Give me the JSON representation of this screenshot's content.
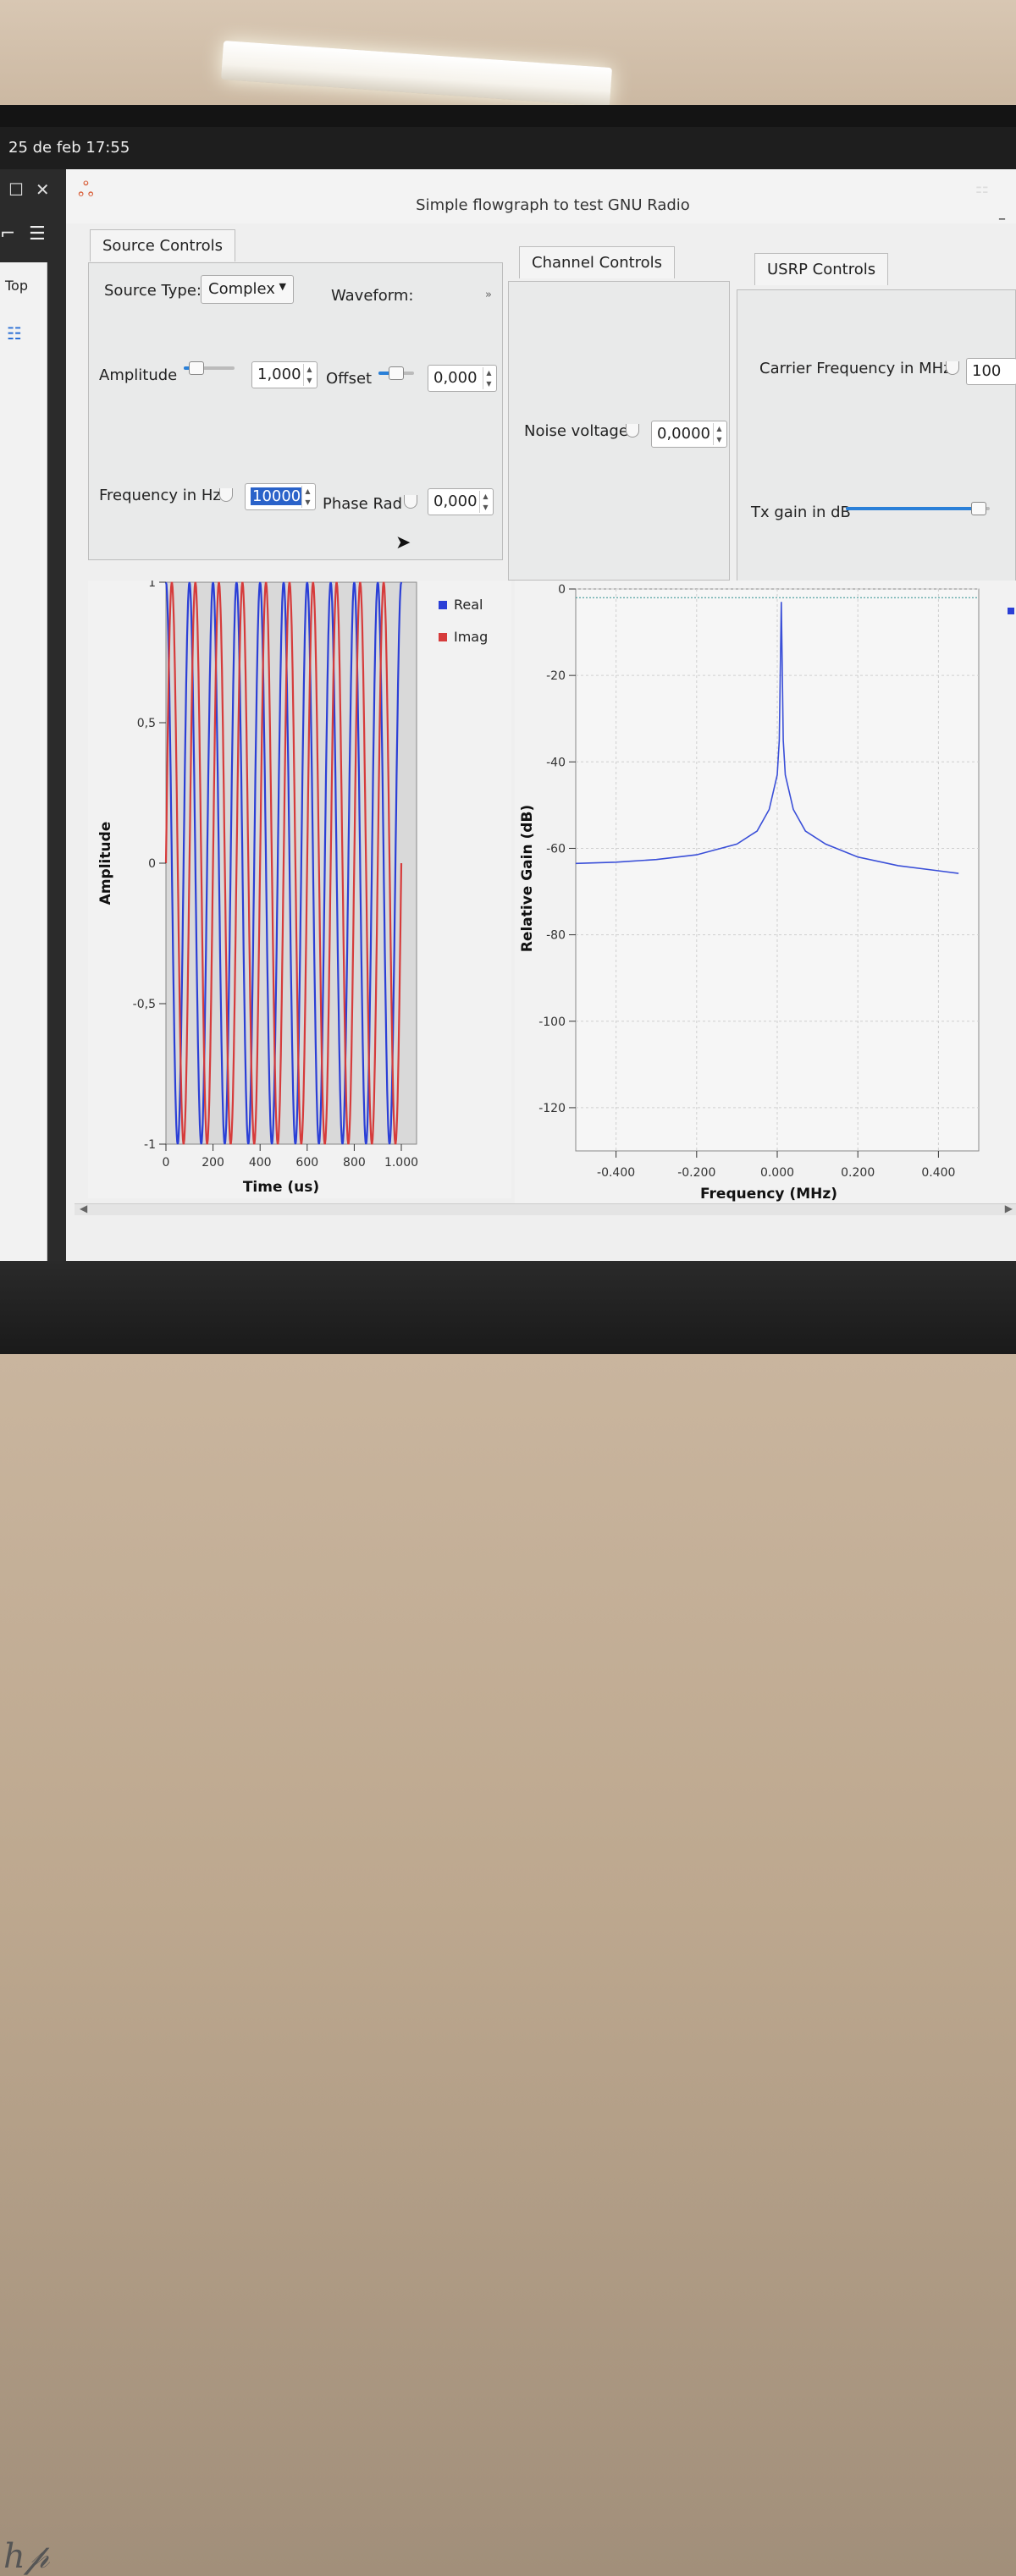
{
  "system": {
    "clock": "25 de feb  17:55"
  },
  "window": {
    "title": "Simple flowgraph to test GNU Radio"
  },
  "sidebar": {
    "top_label": "Top"
  },
  "source_controls": {
    "tab": "Source Controls",
    "source_type_label": "Source Type:",
    "source_type_value": "Complex",
    "waveform_label": "Waveform:",
    "amplitude_label": "Amplitude",
    "amplitude_value": "1,000",
    "offset_label": "Offset",
    "offset_value": "0,000",
    "frequency_label": "Frequency in Hz",
    "frequency_value": "10000",
    "phase_label": "Phase Rad",
    "phase_value": "0,000"
  },
  "channel_controls": {
    "tab": "Channel Controls",
    "noise_label": "Noise voltage",
    "noise_value": "0,0000"
  },
  "usrp_controls": {
    "tab": "USRP Controls",
    "carrier_label": "Carrier Frequency in MHz",
    "carrier_value": "100",
    "tx_gain_label": "Tx gain in dB",
    "tx_gain_level": 0.95
  },
  "chart_data": [
    {
      "type": "line",
      "xlabel": "Time (us)",
      "ylabel": "Amplitude",
      "xlim": [
        0,
        1000
      ],
      "ylim": [
        -1,
        1
      ],
      "x_ticks": [
        "0",
        "200",
        "400",
        "600",
        "800",
        "1.000"
      ],
      "y_ticks": [
        "1",
        "0,5",
        "0",
        "-0,5",
        "-1"
      ],
      "series": [
        {
          "name": "Real",
          "color": "#2b3fd6",
          "frequency_hz": 10000,
          "amplitude": 1
        },
        {
          "name": "Imag",
          "color": "#d63b3b",
          "frequency_hz": 10000,
          "amplitude": 1
        }
      ],
      "legend": "right"
    },
    {
      "type": "line",
      "xlabel": "Frequency (MHz)",
      "ylabel": "Relative Gain (dB)",
      "xlim": [
        -0.5,
        0.5
      ],
      "ylim": [
        -130,
        0
      ],
      "x_ticks": [
        "-0.400",
        "-0.200",
        "0.000",
        "0.200",
        "0.400"
      ],
      "y_ticks": [
        "0",
        "-20",
        "-40",
        "-60",
        "-80",
        "-100",
        "-120"
      ],
      "series": [
        {
          "color": "#3a4fd8",
          "points": [
            [
              -0.5,
              -63.5
            ],
            [
              -0.4,
              -63.2
            ],
            [
              -0.3,
              -62.6
            ],
            [
              -0.2,
              -61.5
            ],
            [
              -0.1,
              -59.0
            ],
            [
              -0.05,
              -56.0
            ],
            [
              -0.02,
              -51.0
            ],
            [
              0.0,
              -43.0
            ],
            [
              0.005,
              -35.0
            ],
            [
              0.01,
              -3.0
            ],
            [
              0.015,
              -35.0
            ],
            [
              0.02,
              -43.0
            ],
            [
              0.04,
              -51.0
            ],
            [
              0.07,
              -56.0
            ],
            [
              0.12,
              -59.0
            ],
            [
              0.2,
              -62.0
            ],
            [
              0.3,
              -64.0
            ],
            [
              0.4,
              -65.2
            ],
            [
              0.45,
              -65.8
            ]
          ]
        }
      ],
      "reference_line_db": -2
    }
  ]
}
